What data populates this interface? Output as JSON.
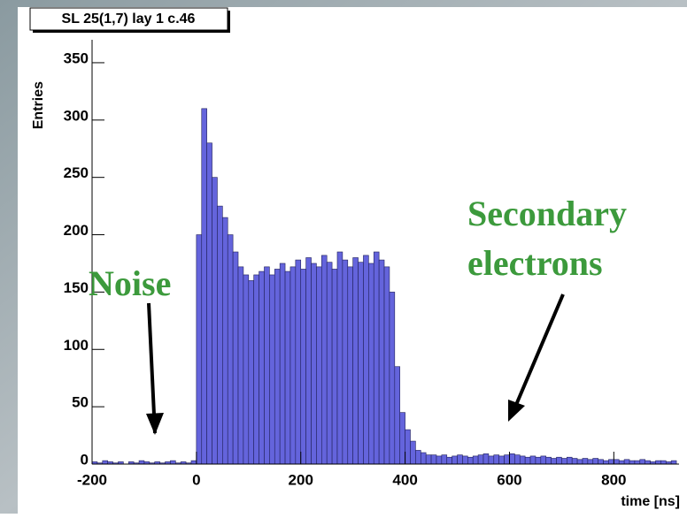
{
  "chart_data": {
    "type": "histogram",
    "title": "SL 25(1,7) lay 1 c.46",
    "x_label": "time [ns]",
    "y_label": "Entries",
    "bins": [
      -200,
      -190,
      -180,
      -170,
      -160,
      -150,
      -140,
      -130,
      -120,
      -110,
      -100,
      -90,
      -80,
      -70,
      -60,
      -50,
      -40,
      -30,
      -20,
      -10,
      0,
      10,
      20,
      30,
      40,
      50,
      60,
      70,
      80,
      90,
      100,
      110,
      120,
      130,
      140,
      150,
      160,
      170,
      180,
      190,
      200,
      210,
      220,
      230,
      240,
      250,
      260,
      270,
      280,
      290,
      300,
      310,
      320,
      330,
      340,
      350,
      360,
      370,
      380,
      390,
      400,
      410,
      420,
      430,
      440,
      450,
      460,
      470,
      480,
      490,
      500,
      510,
      520,
      530,
      540,
      550,
      560,
      570,
      580,
      590,
      600,
      610,
      620,
      630,
      640,
      650,
      660,
      670,
      680,
      690,
      700,
      710,
      720,
      730,
      740,
      750,
      760,
      770,
      780,
      790,
      800,
      810,
      820,
      830,
      840,
      850,
      860,
      870,
      880,
      890,
      900,
      910,
      920
    ],
    "values": [
      2,
      1,
      3,
      2,
      1,
      2,
      0,
      2,
      1,
      3,
      2,
      1,
      2,
      1,
      2,
      3,
      1,
      2,
      1,
      3,
      200,
      310,
      280,
      250,
      225,
      215,
      200,
      185,
      172,
      165,
      160,
      165,
      168,
      172,
      165,
      170,
      175,
      168,
      172,
      178,
      170,
      180,
      175,
      172,
      182,
      176,
      170,
      185,
      178,
      172,
      180,
      176,
      182,
      175,
      185,
      178,
      172,
      150,
      85,
      45,
      30,
      20,
      12,
      10,
      8,
      8,
      7,
      8,
      6,
      7,
      8,
      7,
      6,
      7,
      8,
      9,
      7,
      8,
      7,
      8,
      9,
      8,
      7,
      6,
      7,
      6,
      7,
      6,
      5,
      6,
      5,
      6,
      5,
      4,
      5,
      4,
      5,
      4,
      3,
      4,
      4,
      3,
      4,
      3,
      3,
      4,
      3,
      2,
      3,
      3,
      2,
      3
    ],
    "color": "#6464dc",
    "xlim": [
      -200,
      925
    ],
    "ylim": [
      0,
      370
    ],
    "xticks": [
      -200,
      0,
      200,
      400,
      600,
      800
    ],
    "yticks": [
      0,
      50,
      100,
      150,
      200,
      250,
      300,
      350
    ],
    "annotations": [
      {
        "lines": [
          "Noise"
        ],
        "color": "#3c9a3c"
      },
      {
        "lines": [
          "Secondary",
          "electrons"
        ],
        "color": "#3c9a3c"
      }
    ]
  }
}
